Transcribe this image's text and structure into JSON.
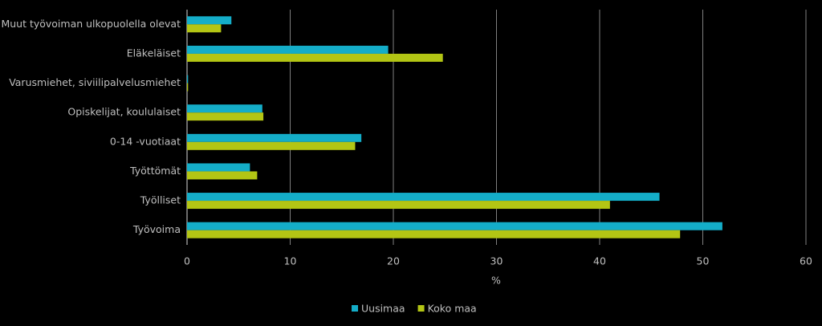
{
  "chart_data": {
    "type": "hbar",
    "categories": [
      "Muut työvoiman ulkopuolella olevat",
      "Eläkeläiset",
      "Varusmiehet, siviilipalvelusmiehet",
      "Opiskelijat, koululaiset",
      "0-14 -vuotiaat",
      "Työttömät",
      "Työlliset",
      "Työvoima"
    ],
    "series": [
      {
        "name": "Uusimaa",
        "color": "#14adc8",
        "values": [
          4.3,
          19.5,
          0.1,
          7.3,
          16.9,
          6.1,
          45.8,
          51.9
        ]
      },
      {
        "name": "Koko maa",
        "color": "#b3c514",
        "values": [
          3.3,
          24.8,
          0.1,
          7.4,
          16.3,
          6.8,
          41.0,
          47.8
        ]
      }
    ],
    "xlabel": "%",
    "xlim": [
      0,
      60
    ],
    "xticks": [
      0,
      10,
      20,
      30,
      40,
      50,
      60
    ],
    "grid": true,
    "legend": "bottom"
  }
}
